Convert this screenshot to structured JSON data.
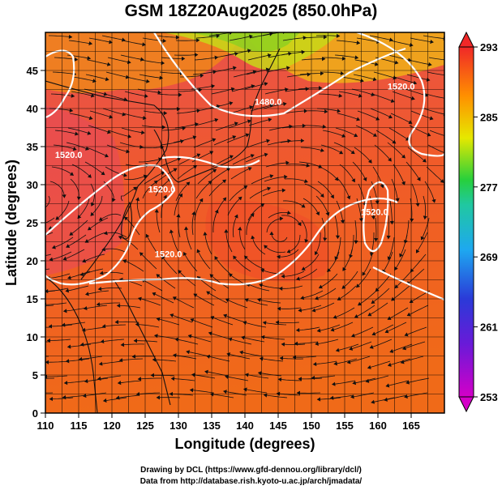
{
  "title": "GSM 18Z20Aug2025 (850.0hPa)",
  "x_axis": {
    "label": "Longitude (degrees)",
    "ticks": [
      110,
      115,
      120,
      125,
      130,
      135,
      140,
      145,
      150,
      155,
      160,
      165
    ],
    "range": [
      110,
      170
    ]
  },
  "y_axis": {
    "label": "Latitude  (degrees)",
    "ticks": [
      0,
      5,
      10,
      15,
      20,
      25,
      30,
      35,
      40,
      45
    ],
    "range": [
      0,
      50
    ]
  },
  "colorbar": {
    "labels": [
      253,
      261,
      269,
      277,
      285,
      293
    ],
    "range": [
      253,
      293
    ],
    "colors": [
      "#d400c8",
      "#3a2ad8",
      "#1ea8f0",
      "#27d03c",
      "#f0e000",
      "#ff8800",
      "#f02020"
    ]
  },
  "contour_labels": [
    {
      "text": "1480.0",
      "lon": 143.5,
      "lat": 40.5
    },
    {
      "text": "1520.0",
      "lon": 163.5,
      "lat": 42.5
    },
    {
      "text": "1520.0",
      "lon": 128.5,
      "lat": 20.5
    },
    {
      "text": "1520.0",
      "lon": 127.5,
      "lat": 29.0
    },
    {
      "text": "1520.0",
      "lon": 113.5,
      "lat": 33.5
    },
    {
      "text": "1520.0",
      "lon": 159.5,
      "lat": 26.0
    }
  ],
  "credits": {
    "line1": "Drawing by DCL (https://www.gfd-dennou.org/library/dcl/)",
    "line2": "Data from http://database.rish.kyoto-u.ac.jp/arch/jmadata/"
  }
}
